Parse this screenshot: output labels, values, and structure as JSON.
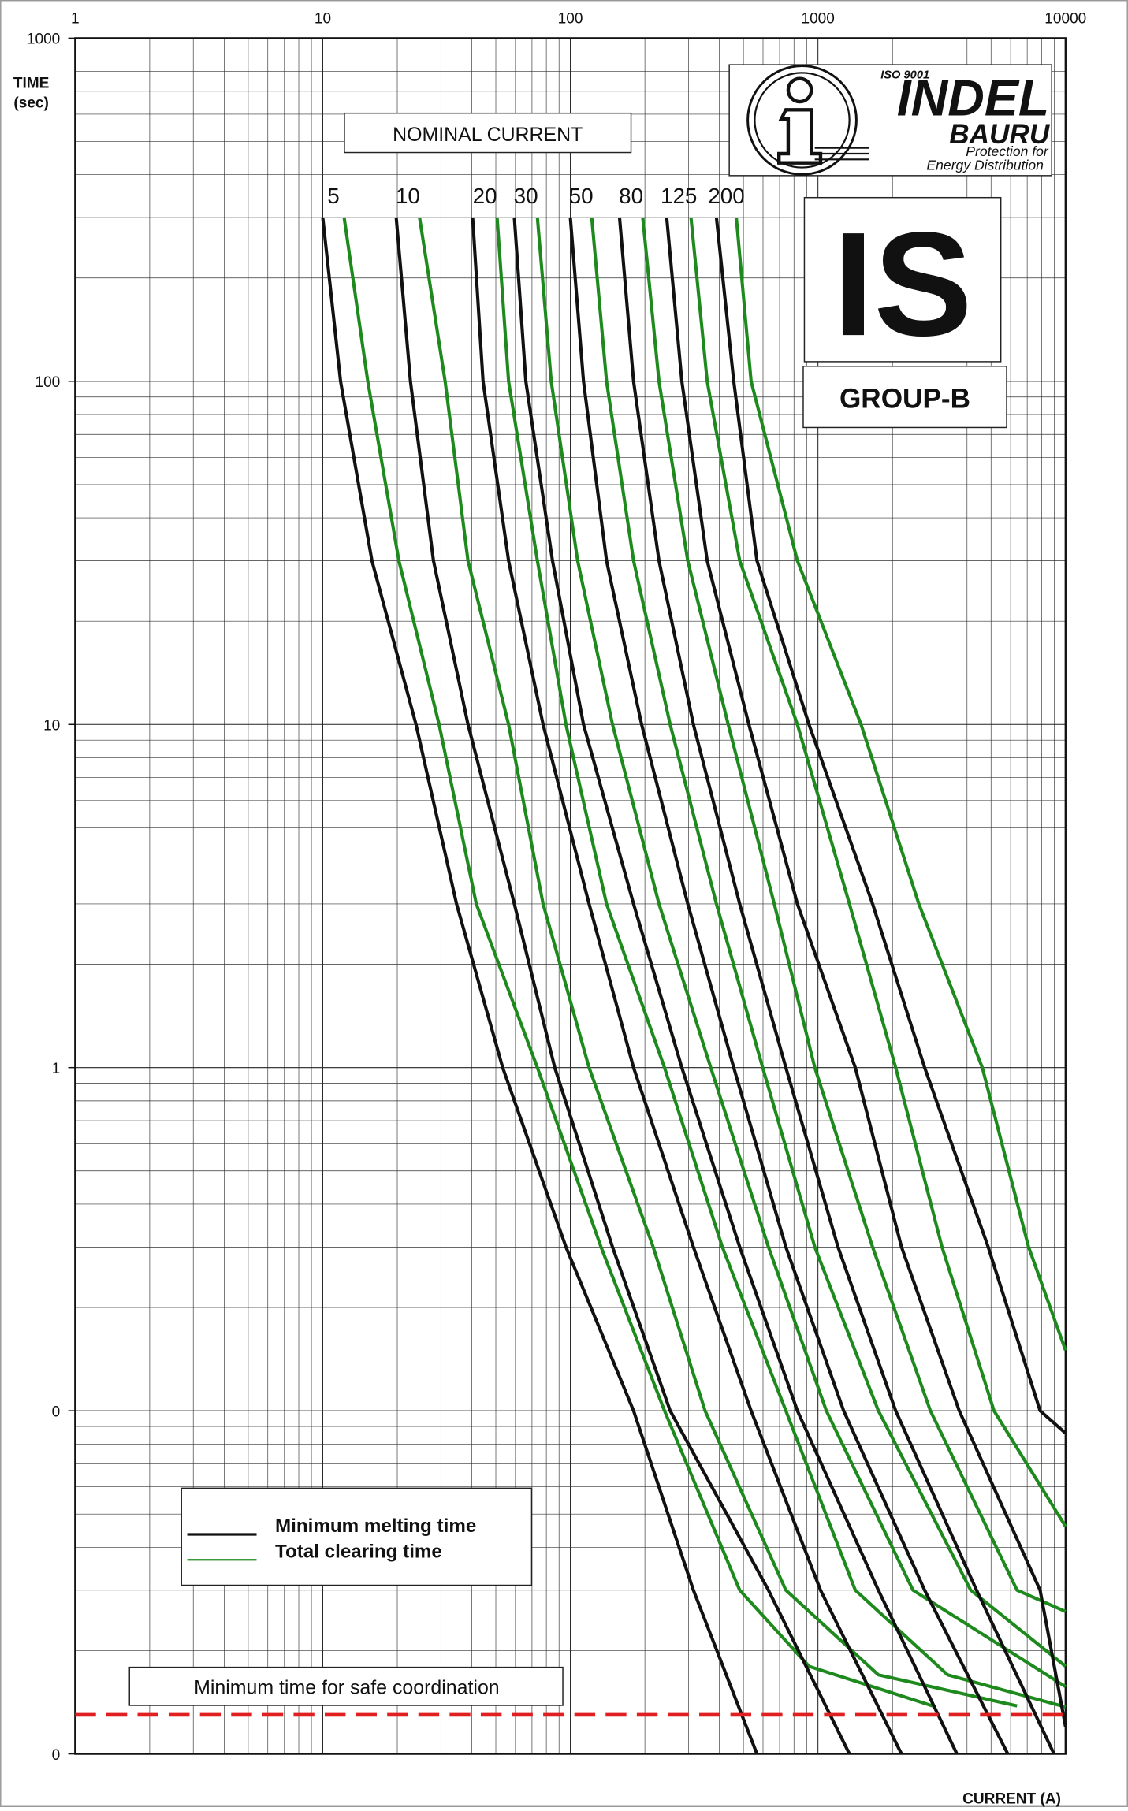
{
  "chart_data": {
    "type": "line",
    "log_x": true,
    "log_y": true,
    "xlim": [
      1,
      10000
    ],
    "ylim": [
      0.01,
      1000
    ],
    "xticks": [
      1,
      10,
      100,
      1000,
      10000
    ],
    "yticks": [
      {
        "value": 0.01,
        "label": "0"
      },
      {
        "value": 0.1,
        "label": "0"
      },
      1,
      10,
      100,
      1000
    ],
    "grid": true,
    "minor_grid": true,
    "y_label": [
      "TIME",
      "(sec)"
    ],
    "x_label": "CURRENT (A)",
    "curve_group_title": "NOMINAL CURRENT",
    "legend_position": "lower left",
    "legend": [
      {
        "name": "Minimum melting time",
        "color": "#111111"
      },
      {
        "name": "Total clearing time",
        "color": "#1e8a1e"
      }
    ],
    "safe_line": {
      "label": "Minimum time for safe coordination",
      "value": 0.013,
      "color": "#e02020"
    },
    "curves": [
      {
        "rating": "5",
        "melting": {
          "x": [
            10,
            11.8,
            15.8,
            23.8,
            34.7,
            53.3,
            96,
            180,
            314,
            567
          ],
          "y": [
            300,
            100,
            30,
            10,
            3,
            1,
            0.3,
            0.1,
            0.03,
            0.01
          ]
        },
        "clearing": {
          "x": [
            12.2,
            15.2,
            20.3,
            29.5,
            41.7,
            73.6,
            133,
            240,
            483,
            920,
            3000
          ],
          "y": [
            300,
            100,
            30,
            10,
            3,
            1,
            0.3,
            0.1,
            0.03,
            0.018,
            0.0137
          ]
        }
      },
      {
        "rating": "10",
        "melting": {
          "x": [
            19.8,
            22.6,
            28,
            38.6,
            59.4,
            86.5,
            148,
            253,
            631,
            1340
          ],
          "y": [
            300,
            100,
            30,
            10,
            3,
            1,
            0.3,
            0.1,
            0.03,
            0.01
          ]
        },
        "clearing": {
          "x": [
            24.6,
            31.2,
            38.6,
            56.3,
            77.6,
            119,
            216,
            350,
            742,
            1754,
            6370
          ],
          "y": [
            300,
            100,
            30,
            10,
            3,
            1,
            0.3,
            0.1,
            0.03,
            0.017,
            0.0138
          ]
        }
      },
      {
        "rating": "20",
        "melting": {
          "x": [
            40.3,
            44.4,
            56.3,
            77.6,
            119,
            180,
            314,
            537,
            1024,
            2175
          ],
          "y": [
            300,
            100,
            30,
            10,
            3,
            1,
            0.3,
            0.1,
            0.03,
            0.01
          ]
        },
        "clearing": {
          "x": [
            50.6,
            56.3,
            73.6,
            96,
            140,
            240,
            411,
            742,
            1415,
            3340,
            10000
          ],
          "y": [
            300,
            100,
            30,
            10,
            3,
            1,
            0.3,
            0.1,
            0.03,
            0.017,
            0.0137
          ]
        }
      },
      {
        "rating": "30",
        "melting": {
          "x": [
            59.4,
            66.1,
            84.7,
            113,
            180,
            282,
            483,
            826,
            1754,
            3640
          ],
          "y": [
            300,
            100,
            30,
            10,
            3,
            1,
            0.3,
            0.1,
            0.03,
            0.01
          ]
        },
        "clearing": {
          "x": [
            73.6,
            83.7,
            107,
            148,
            228,
            369,
            631,
            1081,
            2420,
            10000
          ],
          "y": [
            300,
            100,
            30,
            10,
            3,
            1,
            0.3,
            0.1,
            0.03,
            0.0157
          ]
        }
      },
      {
        "rating": "50",
        "melting": {
          "x": [
            100,
            113,
            140,
            194,
            298,
            457,
            742,
            1270,
            2697,
            5845
          ],
          "y": [
            300,
            100,
            30,
            10,
            3,
            1,
            0.3,
            0.1,
            0.03,
            0.01
          ]
        },
        "clearing": {
          "x": [
            122,
            140,
            180,
            253,
            389,
            598,
            971,
            1754,
            4140,
            10000
          ],
          "y": [
            300,
            100,
            30,
            10,
            3,
            1,
            0.3,
            0.1,
            0.03,
            0.018
          ]
        }
      },
      {
        "rating": "80",
        "melting": {
          "x": [
            158,
            180,
            228,
            314,
            483,
            742,
            1205,
            2060,
            4370,
            8980
          ],
          "y": [
            300,
            100,
            30,
            10,
            3,
            1,
            0.3,
            0.1,
            0.03,
            0.01
          ]
        },
        "clearing": {
          "x": [
            196,
            228,
            298,
            434,
            666,
            971,
            1662,
            2845,
            6370,
            10000
          ],
          "y": [
            300,
            100,
            30,
            10,
            3,
            1,
            0.3,
            0.1,
            0.03,
            0.026
          ]
        }
      },
      {
        "rating": "125",
        "melting": {
          "x": [
            245,
            282,
            357,
            526,
            826,
            1415,
            2175,
            3720,
            7890,
            10000
          ],
          "y": [
            300,
            100,
            30,
            10,
            3,
            1,
            0.3,
            0.1,
            0.03,
            0.012
          ]
        },
        "clearing": {
          "x": [
            307,
            357,
            483,
            826,
            1340,
            2060,
            3170,
            5140,
            10000
          ],
          "y": [
            300,
            100,
            30,
            10,
            3,
            1,
            0.3,
            0.1,
            0.046
          ]
        }
      },
      {
        "rating": "200",
        "melting": {
          "x": [
            389,
            457,
            567,
            920,
            1662,
            2697,
            4870,
            7890,
            10000
          ],
          "y": [
            300,
            100,
            30,
            10,
            3,
            1,
            0.3,
            0.1,
            0.086
          ]
        },
        "clearing": {
          "x": [
            468,
            537,
            826,
            1493,
            2555,
            4610,
            7090,
            10000
          ],
          "y": [
            300,
            100,
            30,
            10,
            3,
            1,
            0.3,
            0.15
          ]
        }
      }
    ]
  },
  "logo": {
    "cert": "ISO 9001",
    "brand": "INDEL",
    "city": "BAURU",
    "tagline": [
      "Protection for",
      "Energy Distribution"
    ]
  },
  "product": {
    "code": "IS",
    "group": "GROUP-B"
  }
}
